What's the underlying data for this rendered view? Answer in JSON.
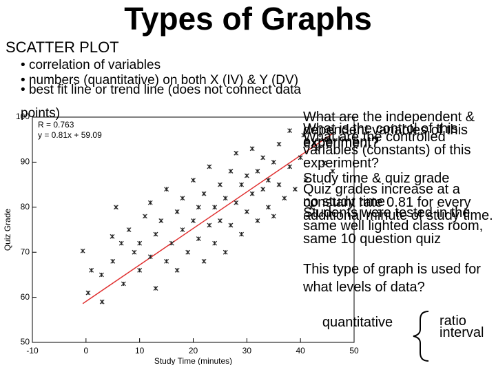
{
  "header": {
    "title": "Types of Graphs",
    "subtitle": "SCATTER PLOT"
  },
  "bullets": [
    "correlation of variables",
    "numbers (quantitative) on both X (IV) & Y (DV)",
    "best fit line or trend line (does not connect data points)"
  ],
  "questions": [
    "What are the independent & dependent variables of this experiment?",
    "What is the control of this experiment?",
    "What are the controlled variables (constants) of this experiment?"
  ],
  "answers": [
    "Study time & quiz grade",
    "Quiz grades increase at a constant rate 0.81 for every additional minute of study time.",
    "no study time",
    "Students were tested in the same well lighted class room, same 10 question quiz"
  ],
  "levels": {
    "question": "This type of graph is used for what levels of data?",
    "kind": "quantitative",
    "options": [
      "ratio",
      "interval"
    ]
  },
  "chart_data": {
    "type": "scatter",
    "x_label": "Study Time (minutes)",
    "y_label": "Quiz Grade",
    "annotations": [
      "R = 0.763",
      "y = 0.81x + 59.09"
    ],
    "fit": {
      "slope": 0.81,
      "intercept": 59.09,
      "color": "#e03030"
    },
    "xlim": [
      -10,
      50
    ],
    "xticks": [
      -10,
      0,
      10,
      20,
      30,
      40,
      50
    ],
    "ylim": [
      50,
      100
    ],
    "yticks": [
      50,
      60,
      70,
      80,
      90,
      100
    ],
    "series": [
      {
        "name": "Students",
        "color": "#222222",
        "x": [
          -0.6,
          0.4,
          2.9,
          4.9,
          5.6,
          6.6,
          1,
          3,
          5,
          7,
          8,
          9,
          10,
          10,
          11,
          12,
          12,
          13,
          13,
          14,
          15,
          15,
          16,
          17,
          17,
          18,
          18,
          19,
          20,
          20,
          21,
          21,
          22,
          22,
          23,
          23,
          24,
          24,
          25,
          25,
          26,
          26,
          27,
          27,
          28,
          28,
          29,
          29,
          30,
          30,
          31,
          31,
          32,
          32,
          33,
          33,
          34,
          34,
          35,
          35,
          36,
          36,
          37,
          38,
          38,
          39,
          40,
          40.6,
          41,
          42,
          43,
          44.4,
          45,
          46
        ],
        "values": [
          70.3,
          61,
          65,
          73.5,
          80,
          72,
          66,
          59,
          68,
          63,
          75,
          70,
          66,
          72,
          78,
          69,
          81,
          62,
          74,
          77,
          68,
          84,
          72,
          79,
          66,
          75,
          82,
          70,
          77,
          86,
          73,
          80,
          68,
          83,
          76,
          89,
          72,
          80,
          85,
          77,
          82,
          70,
          88,
          76,
          81,
          92,
          74,
          85,
          79,
          87,
          83,
          93,
          77,
          88,
          84,
          91,
          80,
          86,
          90,
          78,
          85,
          94,
          82,
          89,
          97,
          84,
          91,
          96,
          86,
          80,
          93,
          89.8,
          95,
          88
        ]
      }
    ]
  }
}
